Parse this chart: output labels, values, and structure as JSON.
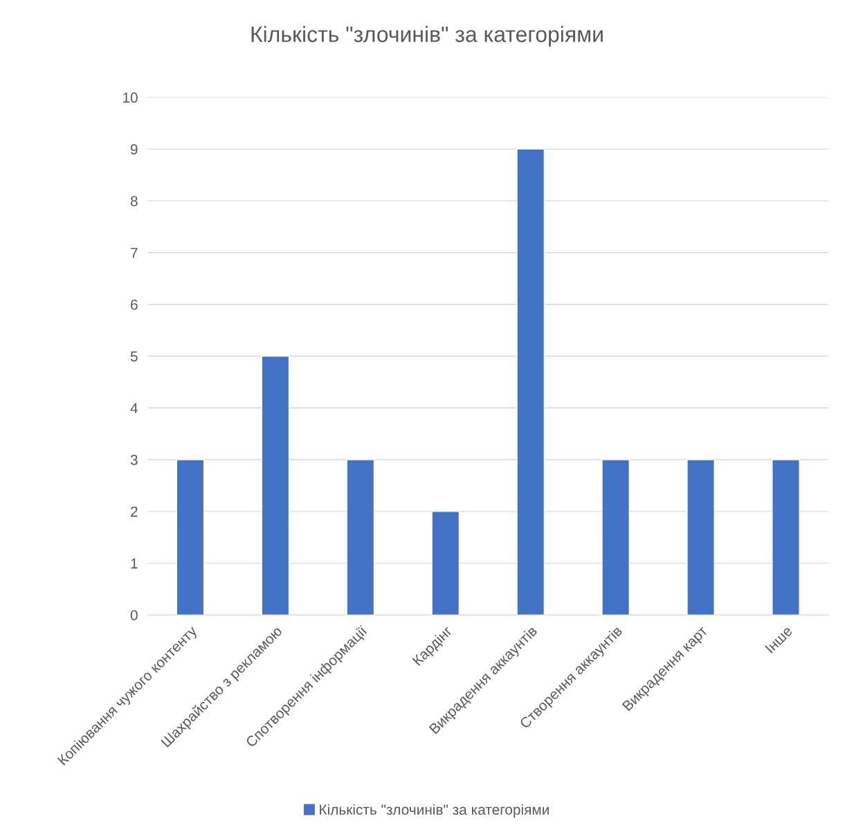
{
  "chart_data": {
    "type": "bar",
    "title": "Кількість \"злочинів\" за категоріями",
    "categories": [
      "Копіювання чужого контенту",
      "Шахрайство з рекламою",
      "Спотворення інформації",
      "Кардінг",
      "Викрадення аккаунтів",
      "Створення аккаунтів",
      "Викрадення карт",
      "Інше"
    ],
    "series": [
      {
        "name": "Кількість \"злочинів\" за категоріями",
        "color": "#4472c4",
        "values": [
          3,
          5,
          3,
          2,
          9,
          3,
          3,
          3
        ]
      }
    ],
    "ylim": [
      0,
      10
    ],
    "yticks": [
      0,
      1,
      2,
      3,
      4,
      5,
      6,
      7,
      8,
      9,
      10
    ],
    "grid": "y",
    "legend": "bottom"
  }
}
